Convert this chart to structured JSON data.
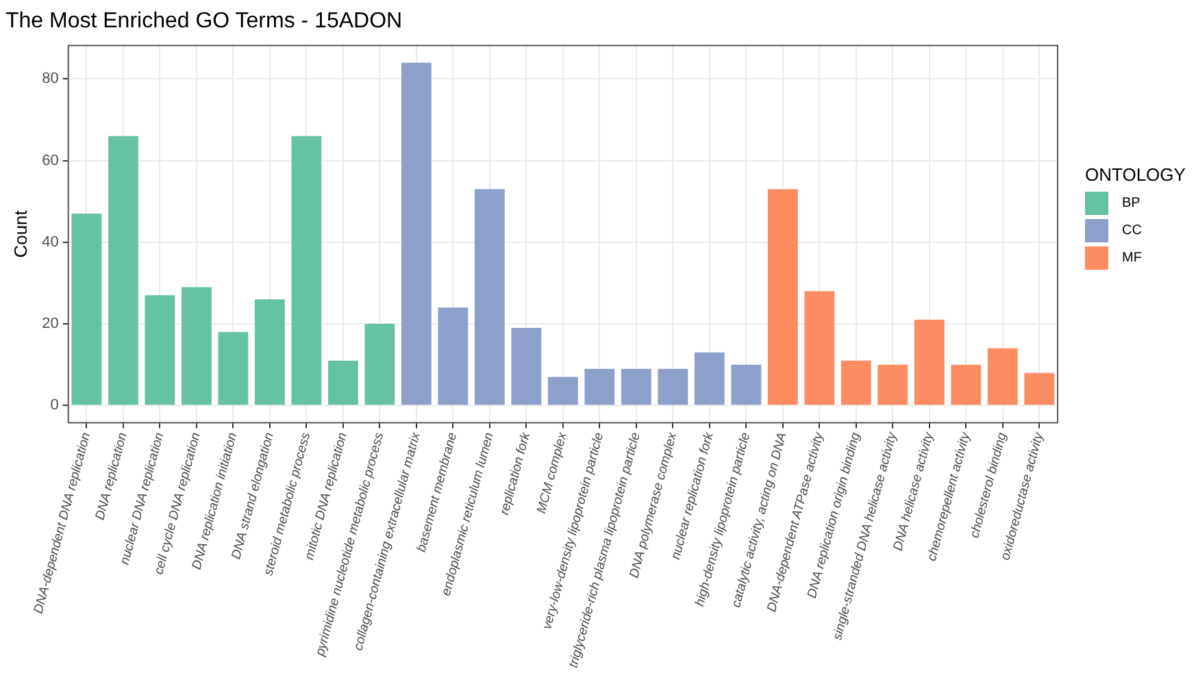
{
  "chart_data": {
    "type": "bar",
    "title": "The Most Enriched GO Terms - 15ADON",
    "ylabel": "Count",
    "legend_title": "ONTOLOGY",
    "categories": [
      "DNA-dependent DNA replication",
      "DNA replication",
      "nuclear DNA replication",
      "cell cycle DNA replication",
      "DNA replication initiation",
      "DNA strand elongation",
      "steroid metabolic process",
      "mitotic DNA replication",
      "pyrimidine nucleotide metabolic process",
      "collagen-containing extracellular matrix",
      "basement membrane",
      "endoplasmic reticulum lumen",
      "replication fork",
      "MCM complex",
      "very-low-density lipoprotein particle",
      "triglyceride-rich plasma lipoprotein particle",
      "DNA polymerase complex",
      "nuclear replication fork",
      "high-density lipoprotein particle",
      "catalytic activity, acting on DNA",
      "DNA-dependent ATPase activity",
      "DNA replication origin binding",
      "single-stranded DNA helicase activity",
      "DNA helicase activity",
      "chemorepellent activity",
      "cholesterol binding",
      "oxidoreductase activity"
    ],
    "series": [
      {
        "name": "BP",
        "color": "#66c2a5",
        "values": [
          47,
          66,
          27,
          29,
          18,
          26,
          66,
          11,
          20,
          null,
          null,
          null,
          null,
          null,
          null,
          null,
          null,
          null,
          null,
          null,
          null,
          null,
          null,
          null,
          null,
          null,
          null
        ]
      },
      {
        "name": "CC",
        "color": "#8da0cb",
        "values": [
          null,
          null,
          null,
          null,
          null,
          null,
          null,
          null,
          null,
          84,
          24,
          53,
          19,
          7,
          9,
          9,
          9,
          13,
          10,
          null,
          null,
          null,
          null,
          null,
          null,
          null,
          null
        ]
      },
      {
        "name": "MF",
        "color": "#fc8d62",
        "values": [
          null,
          null,
          null,
          null,
          null,
          null,
          null,
          null,
          null,
          null,
          null,
          null,
          null,
          null,
          null,
          null,
          null,
          null,
          null,
          53,
          28,
          11,
          10,
          21,
          10,
          14,
          8
        ]
      }
    ],
    "ylim": [
      -4.2,
      88.2
    ],
    "yticks": [
      0,
      20,
      40,
      60,
      80
    ],
    "grid": true,
    "legend": "right"
  }
}
